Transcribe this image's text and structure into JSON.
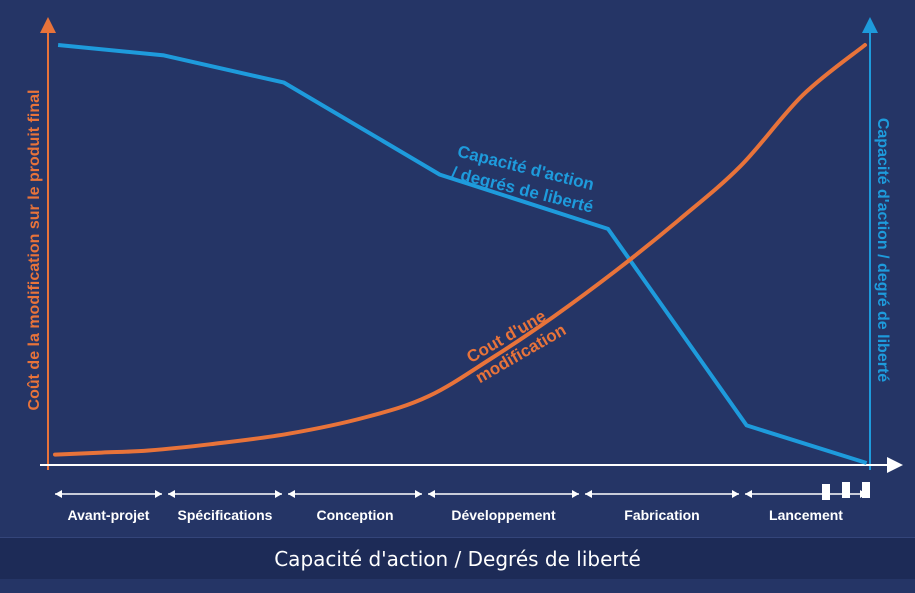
{
  "caption": "Capacité d'action / Degrés de liberté",
  "colors": {
    "background": "#253566",
    "cost": "#e8733a",
    "capacity": "#1e9bdc",
    "axis": "#ffffff",
    "text": "#ffffff"
  },
  "chart_data": {
    "type": "line",
    "title": "",
    "ylabel_left": "Coût de la modification sur le produit final",
    "ylabel_right": "Capacité d'action / degré de liberté",
    "xlim": [
      0,
      6
    ],
    "ylim": [
      0,
      100
    ],
    "grid": false,
    "phases": [
      "Avant-projet",
      "Spécifications",
      "Conception",
      "Développement",
      "Fabrication",
      "Lancement"
    ],
    "phase_bounds": [
      0,
      0.7,
      1.5,
      2.4,
      3.4,
      4.2,
      5.2
    ],
    "series": [
      {
        "name": "Capacité d'action / degrés de liberté",
        "label_lines": [
          "Capacité d'action",
          "/ degrés de liberté"
        ],
        "color": "#1e9bdc",
        "x": [
          0.02,
          0.7,
          1.47,
          2.47,
          3.55,
          4.44,
          5.21
        ],
        "y": [
          100,
          97.5,
          91,
          69,
          56,
          9,
          0
        ]
      },
      {
        "name": "Cout d'une modification",
        "label_lines": [
          "Cout d'une",
          "modification"
        ],
        "color": "#e8733a",
        "x": [
          0,
          0.3,
          0.6,
          1,
          1.5,
          2,
          2.4,
          2.8,
          3.2,
          3.6,
          4,
          4.4,
          4.8,
          5.2
        ],
        "y": [
          2,
          2.5,
          3,
          4.5,
          7,
          11,
          16,
          25,
          35,
          46,
          58,
          71,
          88,
          100
        ]
      }
    ]
  }
}
